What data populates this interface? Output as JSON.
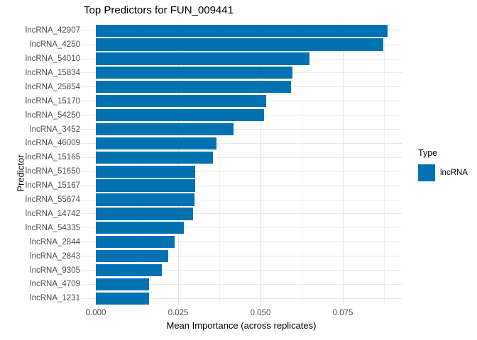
{
  "chart_data": {
    "type": "bar",
    "orientation": "horizontal",
    "title": "Top Predictors for FUN_009441",
    "xlabel": "Mean Importance (across replicates)",
    "ylabel": "Predictor",
    "categories": [
      "lncRNA_42907",
      "lncRNA_4250",
      "lncRNA_54010",
      "lncRNA_15834",
      "lncRNA_25854",
      "lncRNA_15170",
      "lncRNA_54250",
      "lncRNA_3452",
      "lncRNA_46009",
      "lncRNA_15165",
      "lncRNA_51650",
      "lncRNA_15167",
      "lncRNA_55674",
      "lncRNA_14742",
      "lncRNA_54335",
      "lncRNA_2844",
      "lncRNA_2843",
      "lncRNA_9305",
      "lncRNA_4709",
      "lncRNA_1231"
    ],
    "values": [
      0.0885,
      0.0873,
      0.0649,
      0.0596,
      0.0592,
      0.0517,
      0.051,
      0.0418,
      0.0366,
      0.0356,
      0.0301,
      0.0301,
      0.03,
      0.0296,
      0.0267,
      0.0239,
      0.022,
      0.02,
      0.0162,
      0.0161
    ],
    "series_name": "lncRNA",
    "bar_color": "#0072B2",
    "xlim": [
      -0.0044,
      0.0929
    ],
    "x_major_ticks": [
      {
        "value": 0.0,
        "label": "0.000"
      },
      {
        "value": 0.025,
        "label": "0.025"
      },
      {
        "value": 0.05,
        "label": "0.050"
      },
      {
        "value": 0.075,
        "label": "0.075"
      }
    ],
    "x_minor_ticks": [
      0.0125,
      0.0375,
      0.0625,
      0.0875
    ],
    "grid": true,
    "legend": {
      "position": "right",
      "title": "Type",
      "entries": [
        {
          "label": "lncRNA",
          "color": "#0072B2"
        }
      ]
    }
  }
}
